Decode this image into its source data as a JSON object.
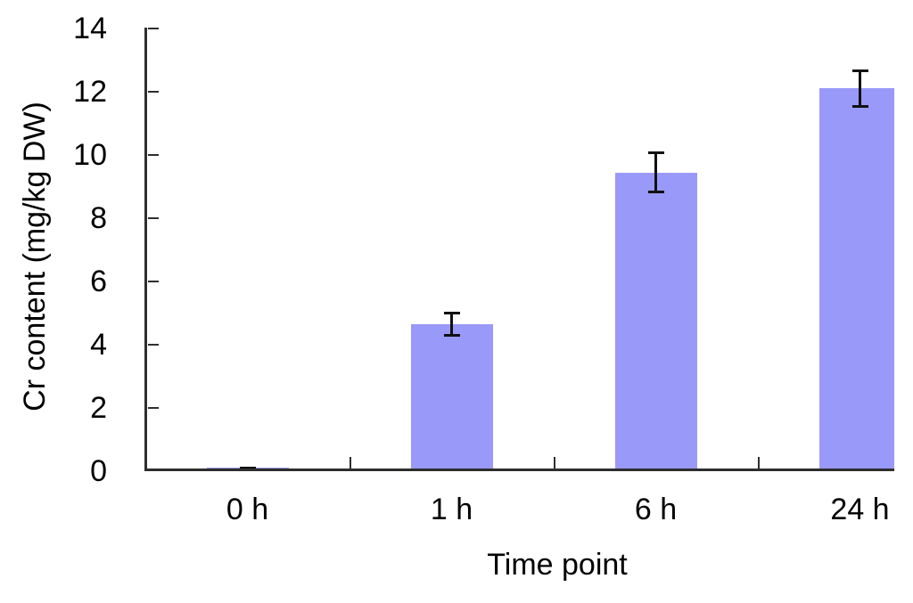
{
  "chart_data": {
    "type": "bar",
    "title": "",
    "categories": [
      "0 h",
      "1 h",
      "6 h",
      "24 h"
    ],
    "values": [
      0.1,
      4.65,
      9.45,
      12.1
    ],
    "errors": [
      0.05,
      0.4,
      0.65,
      0.6
    ],
    "xlabel": "Time point",
    "ylabel": "Cr content (mg/kg DW)",
    "ylim": [
      0,
      14
    ],
    "yticks": [
      0,
      2,
      4,
      6,
      8,
      10,
      12,
      14
    ],
    "grid": false,
    "legend": "none",
    "bar_color": "#9999FA",
    "axis_color": "#2e2e2e",
    "error_bar_color": "#111111",
    "text_color": "#000000",
    "background": "#FFFFFF"
  }
}
